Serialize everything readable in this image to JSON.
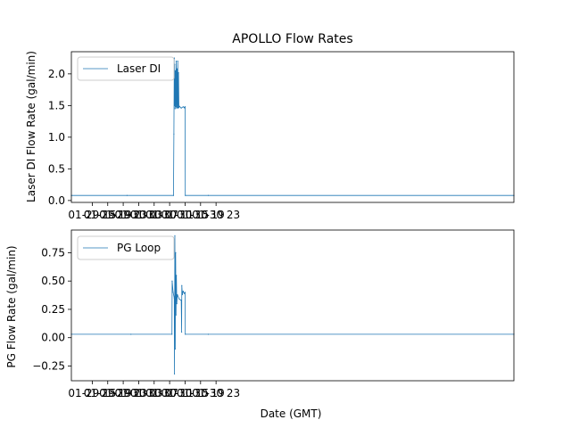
{
  "chart_data": [
    {
      "type": "line",
      "title": "APOLLO Flow Rates",
      "xlabel": "",
      "ylabel": "Laser DI Flow Rate (gal/min)",
      "xlim": [
        9.6,
        124.0
      ],
      "ylim": [
        -0.03,
        2.35
      ],
      "x_unit": "hours since 2024-01-29 00:00 GMT",
      "xticks": [
        15,
        19,
        23,
        27,
        31,
        35,
        39,
        43,
        47
      ],
      "xtick_labels": [
        "01-29 15",
        "01-29 19",
        "01-29 23",
        "01-30 03",
        "01-30 07",
        "01-30 11",
        "01-30 15",
        "01-30 19",
        "01-30 23"
      ],
      "yticks": [
        0.0,
        0.5,
        1.0,
        1.5,
        2.0
      ],
      "ytick_labels": [
        "0.0",
        "0.5",
        "1.0",
        "1.5",
        "2.0"
      ],
      "legend": {
        "position": "top-left",
        "entries": [
          "Laser DI"
        ]
      },
      "series": [
        {
          "name": "Laser DI",
          "color": "#1f77b4",
          "x": [
            9.6,
            24.0,
            36.0,
            36.1,
            36.2,
            36.25,
            36.3,
            36.4,
            36.5,
            36.6,
            36.7,
            36.8,
            36.9,
            37.0,
            37.1,
            37.2,
            37.3,
            37.4,
            37.5,
            38.0,
            38.5,
            38.8,
            38.9,
            39.0,
            39.05,
            45.0,
            124.0
          ],
          "y": [
            0.08,
            0.08,
            0.08,
            1.05,
            2.25,
            1.5,
            2.15,
            1.45,
            2.05,
            1.48,
            2.2,
            1.46,
            2.08,
            1.47,
            2.2,
            1.46,
            2.02,
            1.47,
            1.49,
            1.46,
            1.48,
            1.47,
            1.46,
            1.48,
            0.08,
            0.08,
            0.08
          ]
        }
      ]
    },
    {
      "type": "line",
      "title": "",
      "xlabel": "Date (GMT)",
      "ylabel": "PG Flow Rate (gal/min)",
      "xlim": [
        9.6,
        124.0
      ],
      "ylim": [
        -0.38,
        0.95
      ],
      "x_unit": "hours since 2024-01-29 00:00 GMT",
      "xticks": [
        15,
        19,
        23,
        27,
        31,
        35,
        39,
        43,
        47
      ],
      "xtick_labels": [
        "01-29 15",
        "01-29 19",
        "01-29 23",
        "01-30 03",
        "01-30 07",
        "01-30 11",
        "01-30 15",
        "01-30 19",
        "01-30 23"
      ],
      "yticks": [
        -0.25,
        0.0,
        0.25,
        0.5,
        0.75
      ],
      "ytick_labels": [
        "−0.25",
        "0.00",
        "0.25",
        "0.50",
        "0.75"
      ],
      "legend": {
        "position": "top-left",
        "entries": [
          "PG Loop"
        ]
      },
      "series": [
        {
          "name": "PG Loop",
          "color": "#1f77b4",
          "x": [
            9.6,
            25.0,
            35.6,
            35.65,
            35.9,
            36.2,
            36.25,
            36.35,
            36.45,
            36.55,
            36.65,
            36.75,
            36.85,
            37.0,
            37.5,
            38.0,
            38.1,
            38.15,
            38.3,
            38.5,
            38.8,
            39.0,
            39.05,
            45.0,
            124.0
          ],
          "y": [
            0.03,
            0.03,
            0.03,
            0.5,
            0.4,
            0.35,
            -0.32,
            0.9,
            -0.1,
            0.75,
            0.2,
            0.55,
            0.3,
            0.38,
            0.34,
            0.33,
            0.05,
            0.46,
            0.38,
            0.41,
            0.39,
            0.4,
            0.03,
            0.03,
            0.03
          ]
        }
      ]
    }
  ]
}
